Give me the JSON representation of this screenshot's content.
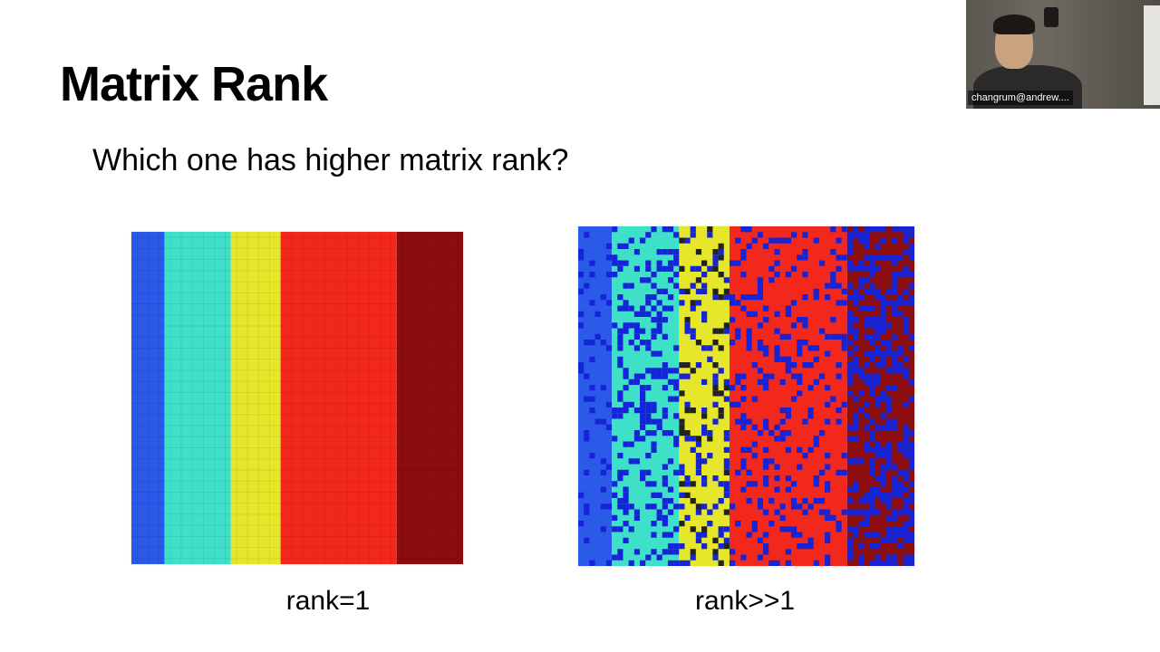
{
  "slide": {
    "title": "Matrix Rank",
    "question": "Which one has higher matrix rank?",
    "left_caption": "rank=1",
    "right_caption": "rank>>1"
  },
  "video": {
    "participant_name": "changrum@andrew...."
  },
  "colors": {
    "bands": [
      "#2b5ae8",
      "#3fe0c8",
      "#e6e62a",
      "#f2281c",
      "#8c0d0d"
    ],
    "noise": "#1624d8"
  }
}
